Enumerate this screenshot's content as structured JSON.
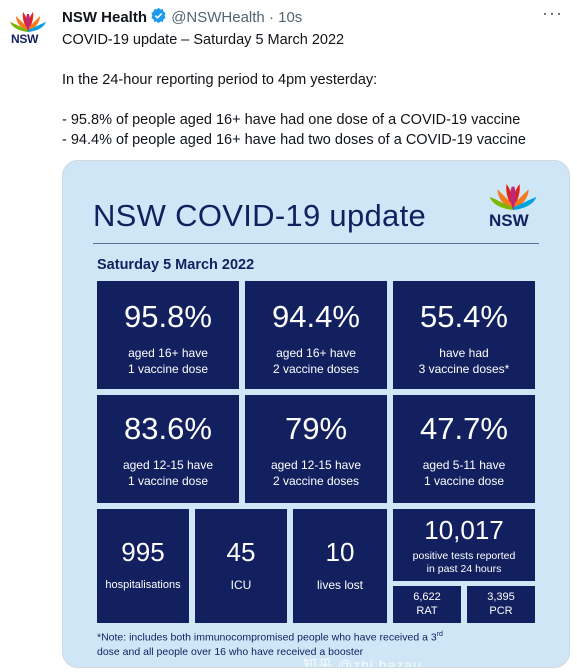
{
  "tweet": {
    "account_name": "NSW Health",
    "handle": "@NSWHealth",
    "time": "10s",
    "more": "···",
    "avatar_text": "NSW",
    "text": "COVID-19 update – Saturday 5 March 2022\n\nIn the 24-hour reporting period to 4pm yesterday:\n\n- 95.8% of people aged 16+ have had one dose of a COVID-19 vaccine\n- 94.4% of people aged 16+ have had two doses of a COVID-19 vaccine"
  },
  "colors": {
    "navy": "#12205f",
    "panel": "#cfe6f7",
    "verified": "#1d9bf0"
  },
  "media": {
    "title": "NSW COVID-19 update",
    "logo_text": "NSW",
    "date": "Saturday 5 March 2022",
    "tiles": [
      {
        "big": "95.8%",
        "line1": "aged 16+ have",
        "line2": "1 vaccine dose"
      },
      {
        "big": "94.4%",
        "line1": "aged 16+ have",
        "line2": "2 vaccine doses"
      },
      {
        "big": "55.4%",
        "line1": "have had",
        "line2": "3 vaccine doses*"
      },
      {
        "big": "83.6%",
        "line1": "aged 12-15 have",
        "line2": "1 vaccine dose"
      },
      {
        "big": "79%",
        "line1": "aged 12-15 have",
        "line2": "2 vaccine doses"
      },
      {
        "big": "47.7%",
        "line1": "aged 5-11 have",
        "line2": "1 vaccine dose"
      }
    ],
    "hospitalisations": {
      "value": "995",
      "label": "hospitalisations"
    },
    "icu": {
      "value": "45",
      "label": "ICU"
    },
    "lives_lost": {
      "value": "10",
      "label": "lives lost"
    },
    "positive_tests": {
      "value": "10,017",
      "line1": "positive tests reported",
      "line2": "in past 24 hours"
    },
    "rat": {
      "value": "6,622",
      "label": "RAT"
    },
    "pcr": {
      "value": "3,395",
      "label": "PCR"
    },
    "note_part1": "*Note: includes both immunocompromised people who have received a 3",
    "note_sup": "rd",
    "note_part2": "dose and all people over 16 who have received a booster",
    "watermark": "知乎 @zhi hazau"
  }
}
